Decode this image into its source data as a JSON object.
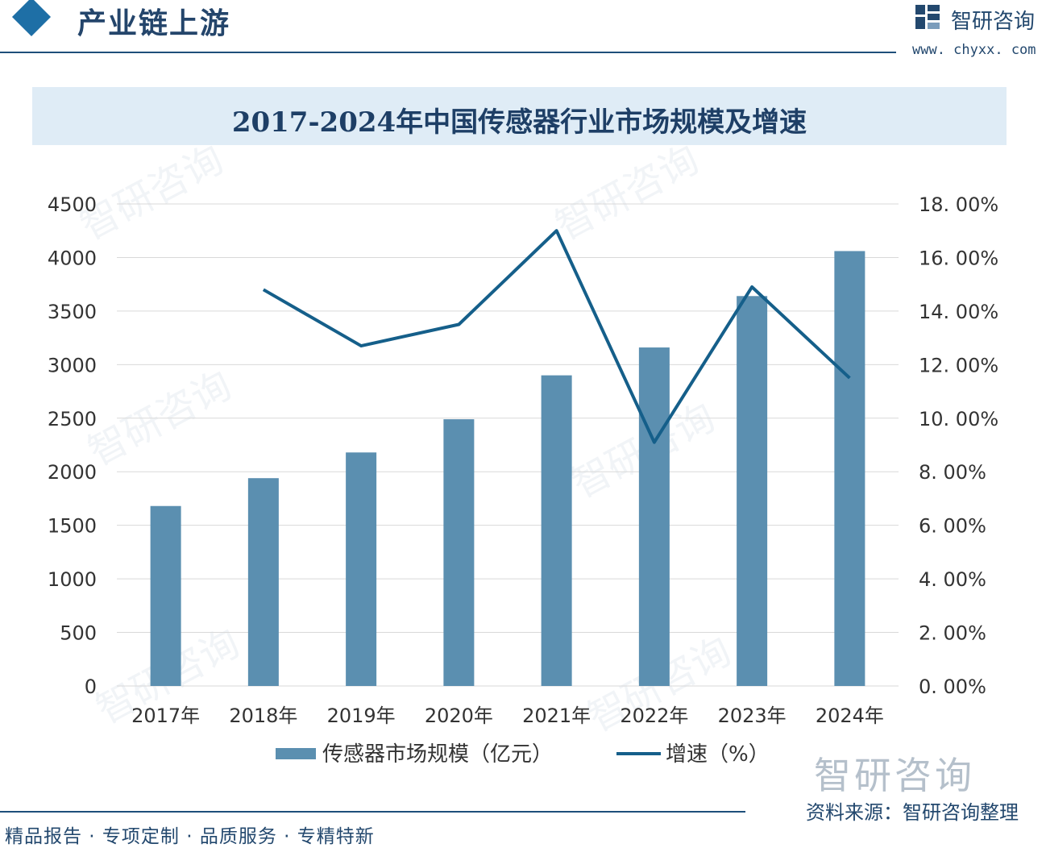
{
  "header": {
    "title": "产业链上游",
    "brand_name": "智研咨询",
    "brand_url": "www. chyxx. com"
  },
  "chart_title": "2017-2024年中国传感器行业市场规模及增速",
  "chart_data": {
    "type": "bar",
    "title": "2017-2024年中国传感器行业市场规模及增速",
    "categories": [
      "2017年",
      "2018年",
      "2019年",
      "2020年",
      "2021年",
      "2022年",
      "2023年",
      "2024年"
    ],
    "series": [
      {
        "name": "传感器市场规模（亿元）",
        "type": "bar",
        "axis": "left",
        "values": [
          1680,
          1940,
          2180,
          2490,
          2900,
          3160,
          3640,
          4060
        ]
      },
      {
        "name": "增速（%）",
        "type": "line",
        "axis": "right",
        "values": [
          null,
          14.8,
          12.7,
          13.5,
          17.0,
          9.1,
          14.9,
          11.5
        ]
      }
    ],
    "y_left": {
      "min": 0,
      "max": 4500,
      "ticks": [
        "0",
        "500",
        "1000",
        "1500",
        "2000",
        "2500",
        "3000",
        "3500",
        "4000",
        "4500"
      ]
    },
    "y_right": {
      "min": 0,
      "max": 18,
      "ticks": [
        "0. 00%",
        "2. 00%",
        "4. 00%",
        "6. 00%",
        "8. 00%",
        "10. 00%",
        "12. 00%",
        "14. 00%",
        "16. 00%",
        "18. 00%"
      ]
    },
    "grid": true,
    "legend_position": "bottom",
    "colors": {
      "bar": "#5b8fb0",
      "line": "#155f8a",
      "grid": "#d9d9d9"
    }
  },
  "watermark": "智研咨询",
  "footer": {
    "left": "精品报告 · 专项定制 · 品质服务 · 专精特新",
    "source": "资料来源：智研咨询整理"
  }
}
